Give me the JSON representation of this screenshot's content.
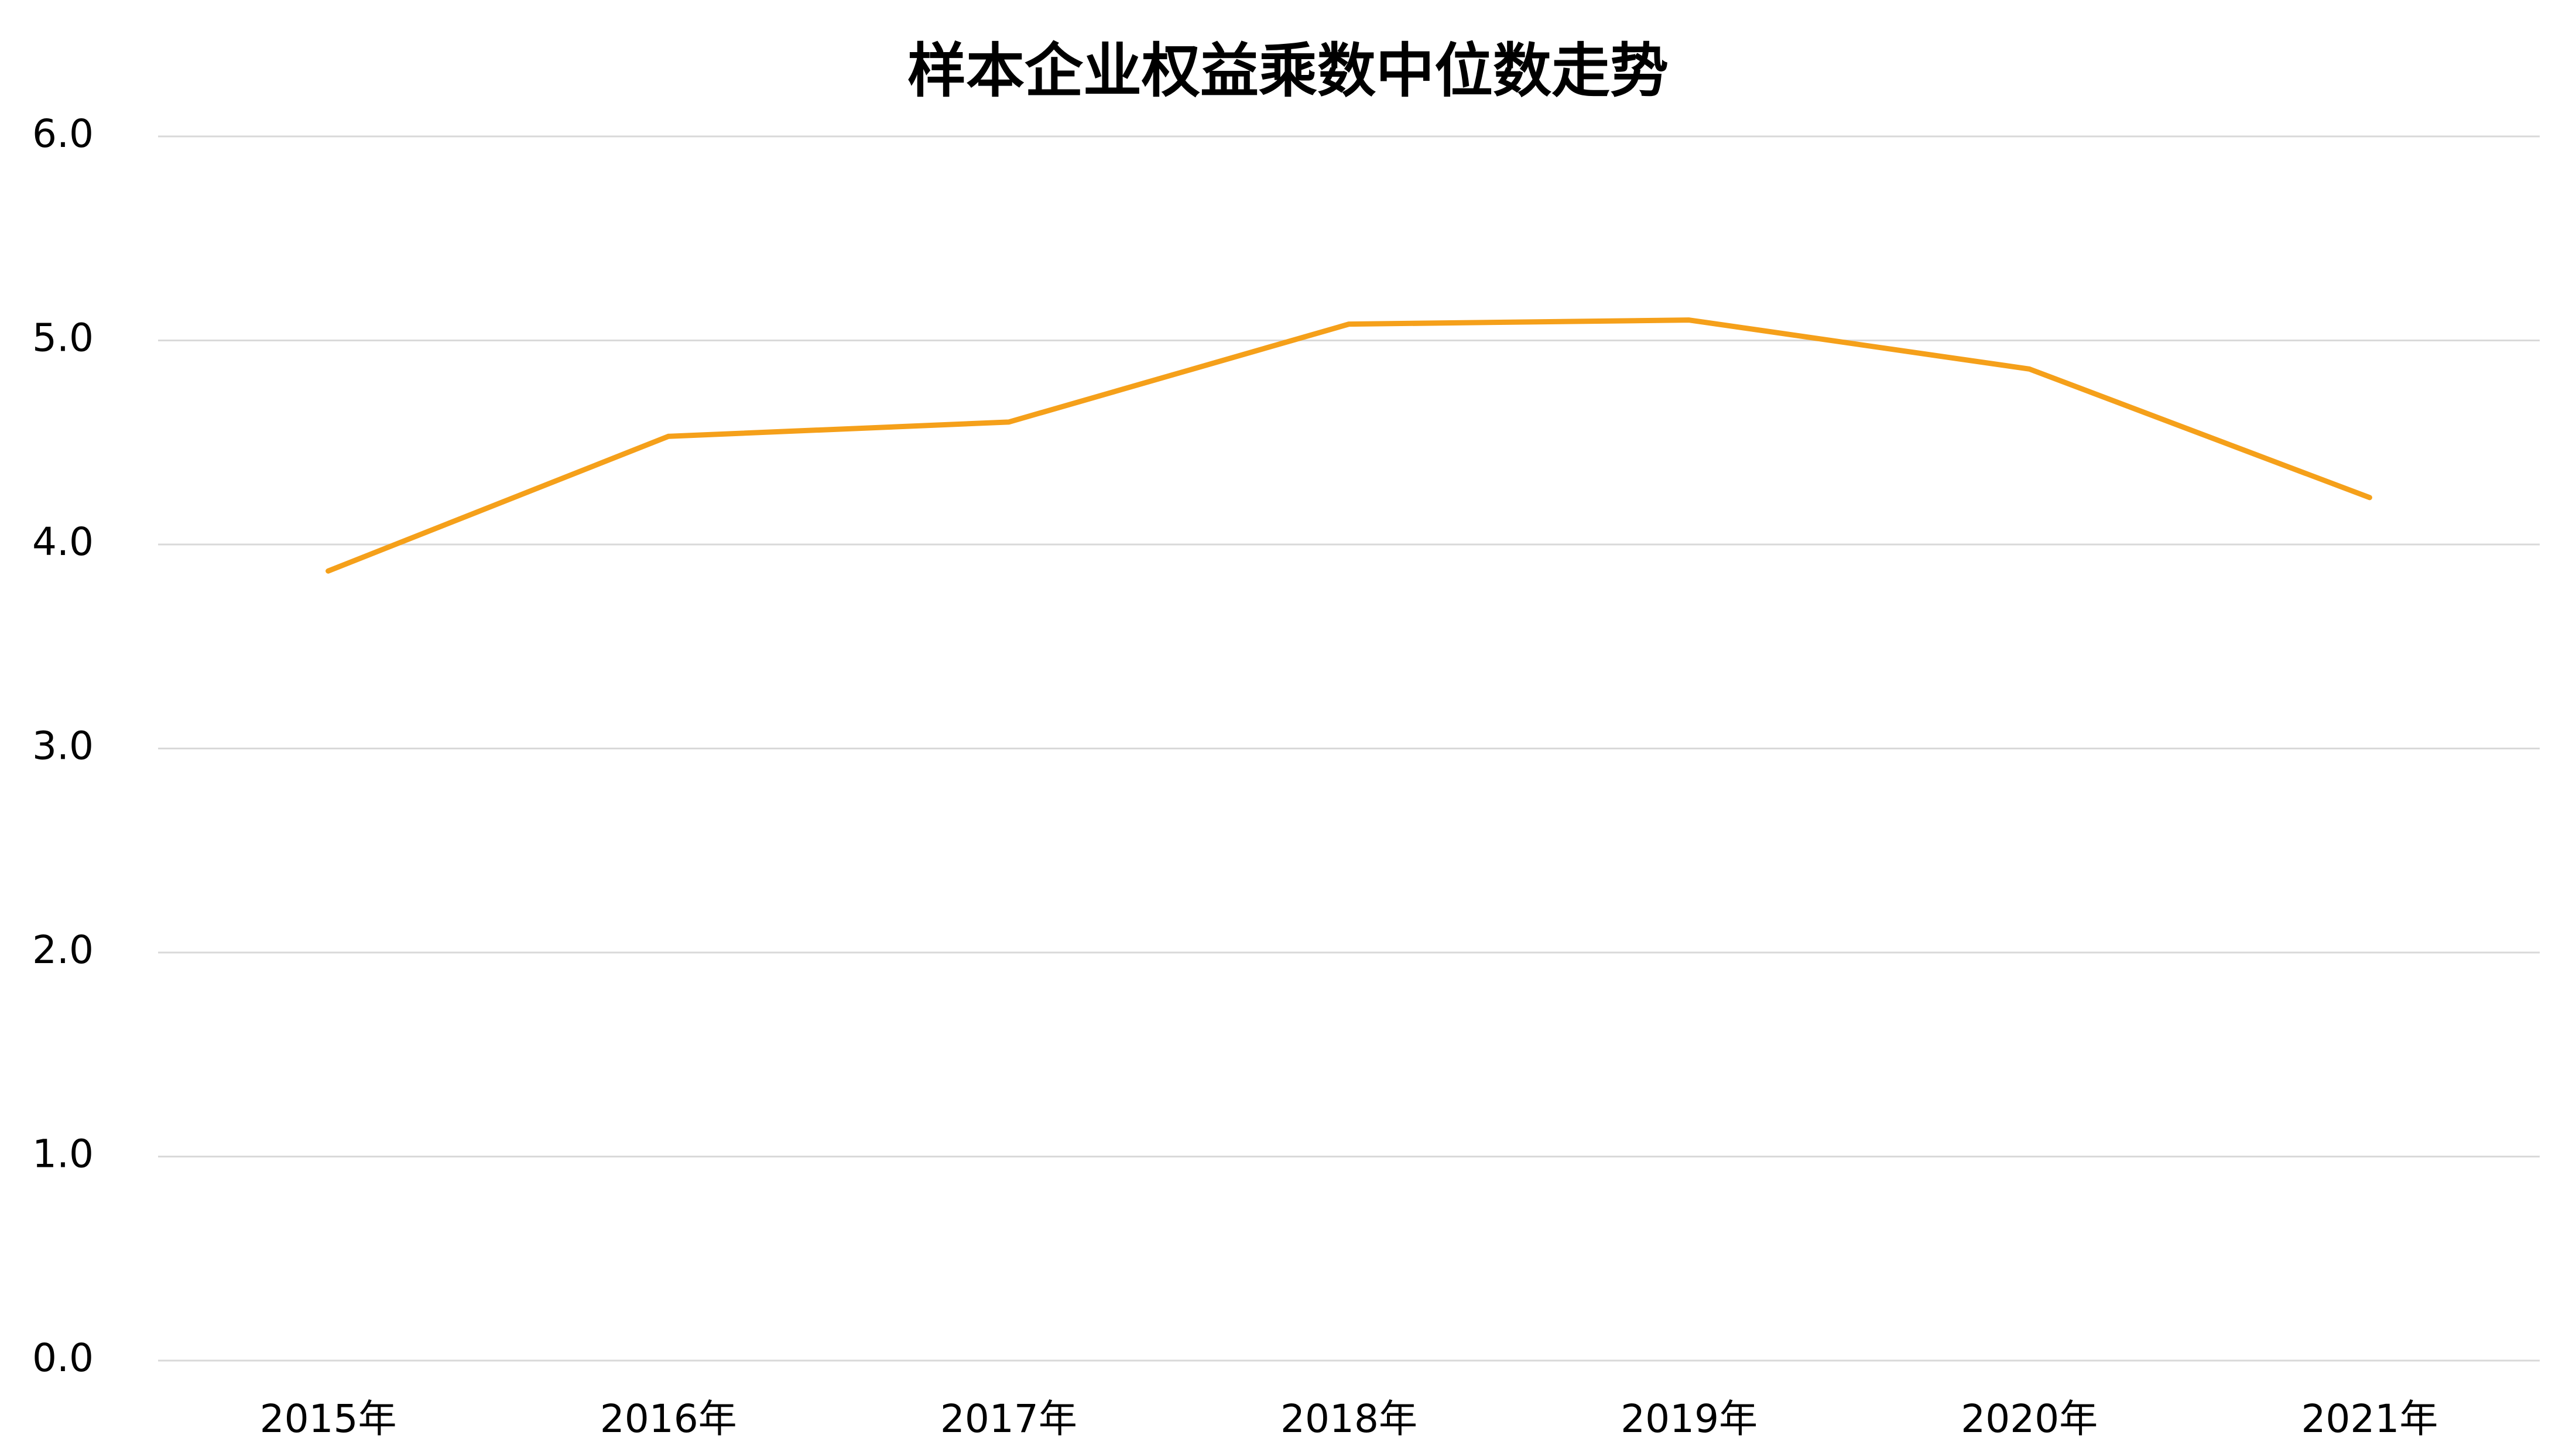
{
  "chart_data": {
    "type": "line",
    "title": "样本企业权益乘数中位数走势",
    "categories": [
      "2015年",
      "2016年",
      "2017年",
      "2018年",
      "2019年",
      "2020年",
      "2021年"
    ],
    "values": [
      3.87,
      4.53,
      4.6,
      5.08,
      5.1,
      4.86,
      4.23
    ],
    "color": "#f5a01a",
    "ylim": [
      0,
      6
    ],
    "yticks": [
      {
        "value": 0,
        "label": "0.0"
      },
      {
        "value": 1,
        "label": "1.0"
      },
      {
        "value": 2,
        "label": "2.0"
      },
      {
        "value": 3,
        "label": "3.0"
      },
      {
        "value": 4,
        "label": "4.0"
      },
      {
        "value": 5,
        "label": "5.0"
      },
      {
        "value": 6,
        "label": "6.0"
      }
    ],
    "grid": true
  }
}
